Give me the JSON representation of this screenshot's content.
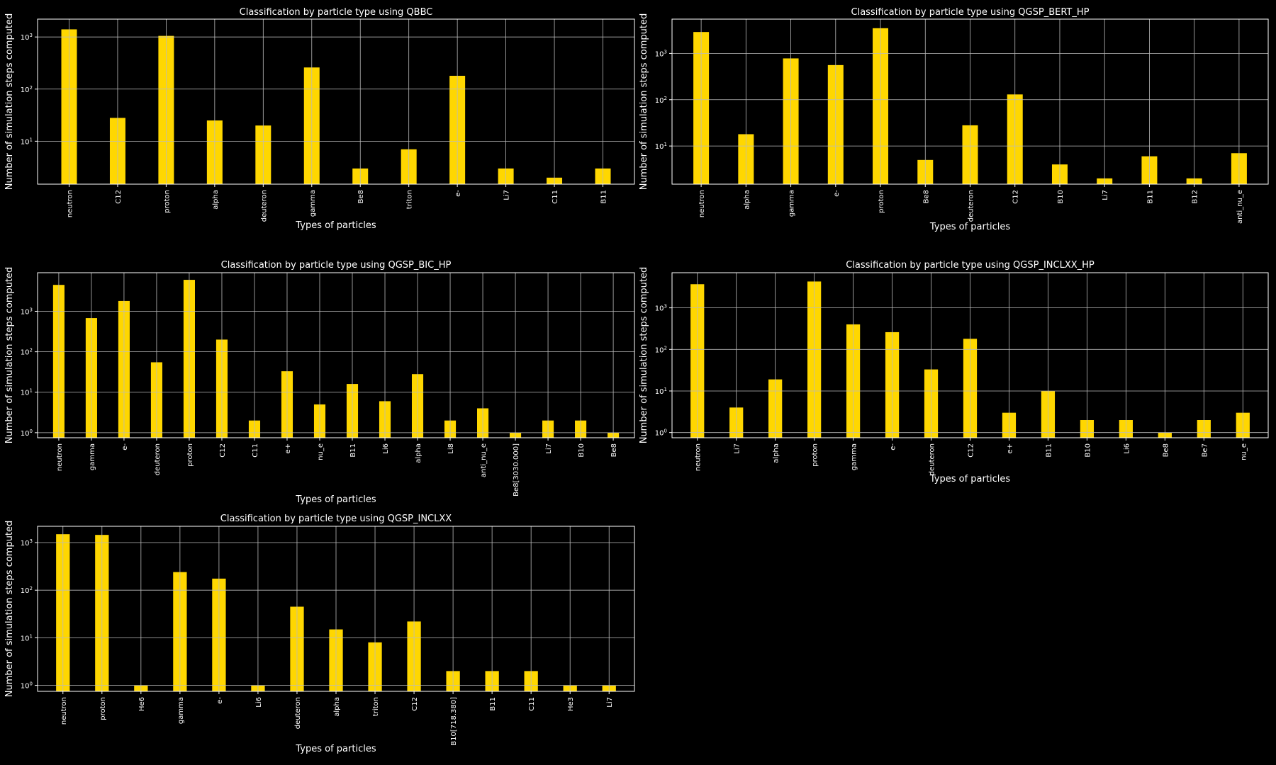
{
  "style": {
    "bar_color": "#FFD700",
    "background": "#000000",
    "text_color": "#FFFFFF",
    "grid_color": "#BBBBBB"
  },
  "chart_data": [
    {
      "type": "bar",
      "title": "Classification by particle type using QBBC",
      "xlabel": "Types of particles",
      "ylabel": "Number of simulation steps computed",
      "yscale": "log",
      "grid": true,
      "categories": [
        "neutron",
        "C12",
        "proton",
        "alpha",
        "deuteron",
        "gamma",
        "Be8",
        "triton",
        "e-",
        "Li7",
        "C11",
        "B11"
      ],
      "values": [
        1400,
        28,
        1050,
        25,
        20,
        260,
        3,
        7,
        180,
        3,
        2,
        3
      ]
    },
    {
      "type": "bar",
      "title": "Classification by particle type using QGSP_BERT_HP",
      "xlabel": "Types of particles",
      "ylabel": "Number of simulation steps computed",
      "yscale": "log",
      "grid": true,
      "categories": [
        "neutron",
        "alpha",
        "gamma",
        "e-",
        "proton",
        "Be8",
        "deuteron",
        "C12",
        "B10",
        "Li7",
        "B11",
        "B12",
        "anti_nu_e"
      ],
      "values": [
        2900,
        18,
        780,
        560,
        3500,
        5,
        28,
        130,
        4,
        2,
        6,
        2,
        7
      ]
    },
    {
      "type": "bar",
      "title": "Classification by particle type using QGSP_BIC_HP",
      "xlabel": "Types of particles",
      "ylabel": "Number of simulation steps computed",
      "yscale": "log",
      "grid": true,
      "categories": [
        "neutron",
        "gamma",
        "e-",
        "deuteron",
        "proton",
        "C12",
        "C11",
        "e+",
        "nu_e",
        "B11",
        "Li6",
        "alpha",
        "Li8",
        "anti_nu_e",
        "Be8[3030.000]",
        "Li7",
        "B10",
        "Be8"
      ],
      "values": [
        4500,
        680,
        1800,
        55,
        6000,
        200,
        2,
        33,
        5,
        16,
        6,
        28,
        2,
        4,
        1,
        2,
        2,
        1
      ]
    },
    {
      "type": "bar",
      "title": "Classification by particle type using QGSP_INCLXX_HP",
      "xlabel": "Types of particles",
      "ylabel": "Number of simulation steps computed",
      "yscale": "log",
      "grid": true,
      "categories": [
        "neutron",
        "Li7",
        "alpha",
        "proton",
        "gamma",
        "e-",
        "deuteron",
        "C12",
        "e+",
        "B11",
        "B10",
        "Li6",
        "Be8",
        "Be7",
        "nu_e"
      ],
      "values": [
        3700,
        4,
        19,
        4300,
        400,
        260,
        33,
        180,
        3,
        10,
        2,
        2,
        1,
        2,
        3
      ]
    },
    {
      "type": "bar",
      "title": "Classification by particle type using QGSP_INCLXX",
      "xlabel": "Types of particles",
      "ylabel": "Number of simulation steps computed",
      "yscale": "log",
      "grid": true,
      "categories": [
        "neutron",
        "proton",
        "He6",
        "gamma",
        "e-",
        "Li6",
        "deuteron",
        "alpha",
        "triton",
        "C12",
        "B10[718.380]",
        "B11",
        "C11",
        "He3",
        "Li7"
      ],
      "values": [
        1500,
        1450,
        1,
        240,
        175,
        1,
        45,
        15,
        8,
        22,
        2,
        2,
        2,
        1,
        1
      ]
    }
  ]
}
